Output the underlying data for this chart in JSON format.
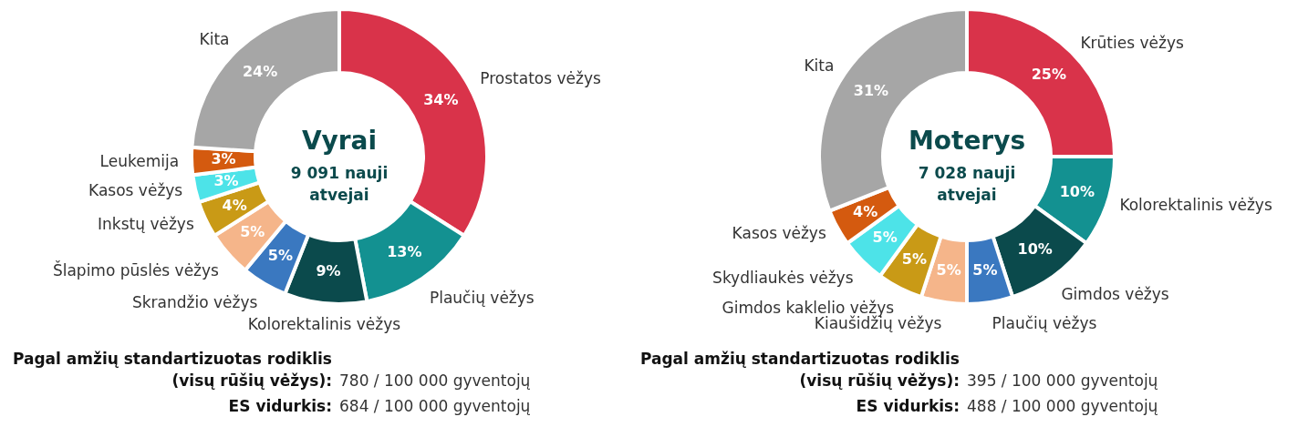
{
  "chart_data": [
    {
      "type": "donut",
      "title": "Vyrai",
      "subtitle": "9 091 nauji atvejai",
      "categories": [
        "Prostatos vėžys",
        "Plaučių vėžys",
        "Kolorektalinis vėžys",
        "Skrandžio vėžys",
        "Šlapimo pūslės vėžys",
        "Inkstų vėžys",
        "Kasos vėžys",
        "Leukemija",
        "Kita"
      ],
      "values": [
        34,
        13,
        9,
        5,
        5,
        4,
        3,
        3,
        24
      ],
      "value_labels": [
        "34%",
        "13%",
        "9%",
        "5%",
        "5%",
        "4%",
        "3%",
        "3%",
        "24%"
      ],
      "colors": [
        "#d9334a",
        "#139191",
        "#0b4a4c",
        "#3a78c0",
        "#f5b58a",
        "#c99a16",
        "#4de3e8",
        "#d45a0f",
        "#a6a6a6"
      ],
      "annotations": [
        "Pagal amžių standartizuotas rodiklis (visų rūšių vėžys):",
        "780 / 100 000 gyventojų",
        "ES vidurkis:",
        "684 / 100 000 gyventojų"
      ]
    },
    {
      "type": "donut",
      "title": "Moterys",
      "subtitle": "7 028 nauji atvejai",
      "categories": [
        "Krūties vėžys",
        "Kolorektalinis vėžys",
        "Gimdos vėžys",
        "Plaučių vėžys",
        "Kiaušidžių vėžys",
        "Gimdos kaklelio vėžys",
        "Skydliaukės vėžys",
        "Kasos vėžys",
        "Kita"
      ],
      "values": [
        25,
        10,
        10,
        5,
        5,
        5,
        5,
        4,
        31
      ],
      "value_labels": [
        "25%",
        "10%",
        "10%",
        "5%",
        "5%",
        "5%",
        "5%",
        "4%",
        "31%"
      ],
      "colors": [
        "#d9334a",
        "#139191",
        "#0b4a4c",
        "#3a78c0",
        "#f5b58a",
        "#c99a16",
        "#4de3e8",
        "#d45a0f",
        "#a6a6a6"
      ],
      "annotations": [
        "Pagal amžių standartizuotas rodiklis (visų rūšių vėžys):",
        "395 / 100 000 gyventojų",
        "ES vidurkis:",
        "488 / 100 000 gyventojų"
      ]
    }
  ]
}
